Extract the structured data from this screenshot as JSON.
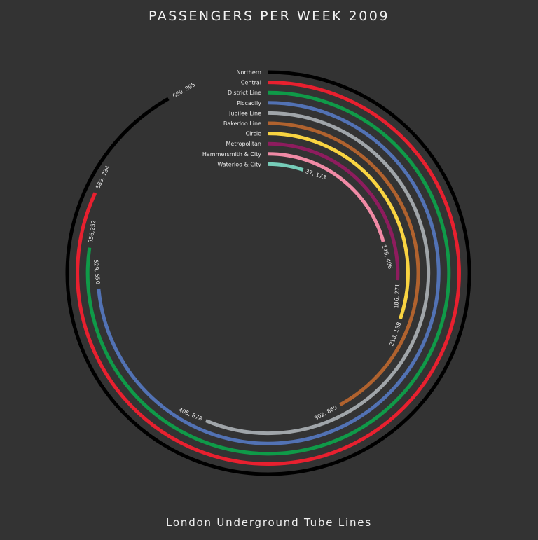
{
  "title": "PASSENGERS PER WEEK 2009",
  "footer": "London Underground Tube Lines",
  "chart_data": {
    "type": "radial-bar",
    "title": "PASSENGERS PER WEEK 2009",
    "subtitle": "London Underground Tube Lines",
    "full_circle_value": 720000,
    "series": [
      {
        "name": "Northern",
        "value": 660395,
        "label": "660, 395",
        "color": "#000000"
      },
      {
        "name": "Central",
        "value": 589734,
        "label": "589, 734",
        "color": "#e8202f"
      },
      {
        "name": "District Line",
        "value": 556252,
        "label": "556,252",
        "color": "#0f9a48"
      },
      {
        "name": "Piccadily",
        "value": 529550,
        "label": "529, 550",
        "color": "#5272b4"
      },
      {
        "name": "Jubilee Line",
        "value": 405878,
        "label": "405, 878",
        "color": "#a0a5a9"
      },
      {
        "name": "Bakerloo Line",
        "value": 302869,
        "label": "302, 869",
        "color": "#b0622e"
      },
      {
        "name": "Circle",
        "value": 218138,
        "label": "218, 138",
        "color": "#f9d441"
      },
      {
        "name": "Metropolitan",
        "value": 186271,
        "label": "186, 271",
        "color": "#8e1c5e"
      },
      {
        "name": "Hammersmith & City",
        "value": 149406,
        "label": "149, 406",
        "color": "#f08aa5"
      },
      {
        "name": "Waterloo & City",
        "value": 37173,
        "label": "37, 173",
        "color": "#76cdb9"
      }
    ]
  }
}
